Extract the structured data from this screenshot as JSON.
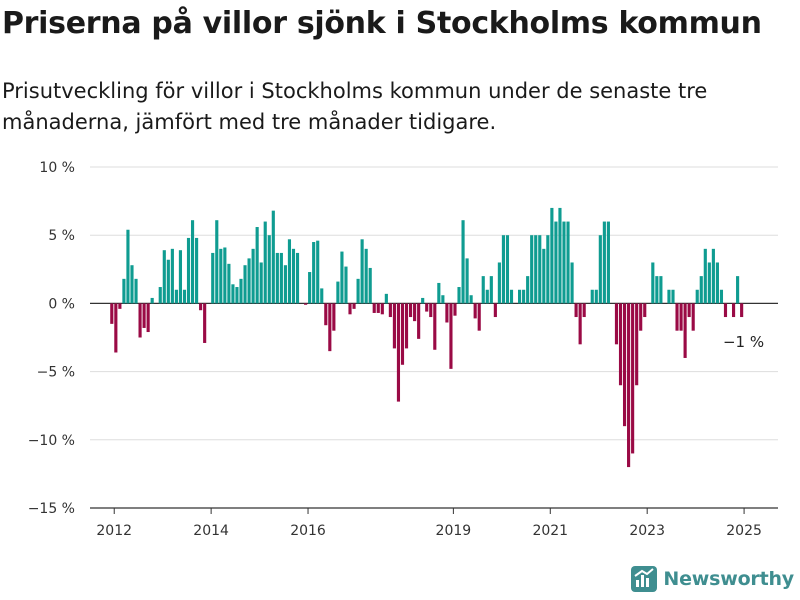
{
  "title": "Priserna på villor sjönk i Stockholms kommun",
  "subtitle": "Prisutveckling för villor i Stockholms kommun under de senaste tre månaderna, jämfört med tre månader tidigare.",
  "brand": "Newsworthy",
  "colors": {
    "positive": "#0f9c91",
    "negative": "#9a0a45",
    "grid": "#dddddd",
    "axis": "#333333",
    "brand": "#3f8e90"
  },
  "chart_data": {
    "type": "bar",
    "ylabel": "",
    "xlabel": "",
    "ylim": [
      -15,
      10
    ],
    "yticks": [
      10,
      5,
      0,
      -5,
      -10,
      -15
    ],
    "ytick_labels": [
      "10 %",
      "5 %",
      "0 %",
      "−5 %",
      "−10 %",
      "−15 %"
    ],
    "xlim": [
      2011.5,
      2025.7
    ],
    "xticks": [
      2012,
      2014,
      2016,
      2019,
      2021,
      2023,
      2025
    ],
    "xtick_labels": [
      "2012",
      "2014",
      "2016",
      "2019",
      "2021",
      "2023",
      "2025"
    ],
    "grid": true,
    "annotation": {
      "text": "−1 %",
      "x": 2025,
      "y": -1
    },
    "x_start": 2011.95,
    "x_step": 0.08333,
    "values": [
      -1.5,
      -3.6,
      -0.4,
      1.8,
      5.4,
      2.8,
      1.8,
      -2.5,
      -1.8,
      -2.1,
      0.4,
      0,
      1.2,
      3.9,
      3.2,
      4.0,
      1.0,
      3.9,
      1.0,
      4.8,
      6.1,
      4.8,
      -0.5,
      -2.9,
      0,
      3.7,
      6.1,
      4.0,
      4.1,
      2.9,
      1.4,
      1.2,
      1.8,
      2.8,
      3.3,
      4.0,
      5.6,
      3.0,
      6.0,
      5.0,
      6.8,
      3.7,
      3.7,
      2.8,
      4.7,
      4.0,
      3.7,
      0,
      -0.1,
      2.3,
      4.5,
      4.6,
      1.1,
      -1.6,
      -3.5,
      -2.0,
      1.6,
      3.8,
      2.7,
      -0.8,
      -0.4,
      1.8,
      4.7,
      4.0,
      2.6,
      -0.7,
      -0.7,
      -0.8,
      0.7,
      -1.0,
      -3.3,
      -7.2,
      -4.5,
      -3.3,
      -1.0,
      -1.3,
      -2.6,
      0.4,
      -0.6,
      -1.0,
      -3.4,
      1.5,
      0.6,
      -1.4,
      -4.8,
      -0.9,
      1.2,
      6.1,
      3.3,
      0.6,
      -1.1,
      -2.0,
      2.0,
      1.0,
      2.0,
      -1.0,
      3.0,
      5.0,
      5.0,
      1.0,
      0,
      1.0,
      1.0,
      2.0,
      5.0,
      5.0,
      5.0,
      4.0,
      5.0,
      7.0,
      6.0,
      7.0,
      6.0,
      6.0,
      3.0,
      -1.0,
      -3.0,
      -1.0,
      0,
      1.0,
      1.0,
      5.0,
      6.0,
      6.0,
      0,
      -3.0,
      -6.0,
      -9.0,
      -12.0,
      -11.0,
      -6.0,
      -2.0,
      -1.0,
      0,
      3.0,
      2.0,
      2.0,
      0,
      1.0,
      1.0,
      -2.0,
      -2.0,
      -4.0,
      -1.0,
      -2.0,
      1.0,
      2.0,
      4.0,
      3.0,
      4.0,
      3.0,
      1.0,
      -1.0,
      0,
      -1.0,
      2.0,
      -1.0
    ]
  }
}
